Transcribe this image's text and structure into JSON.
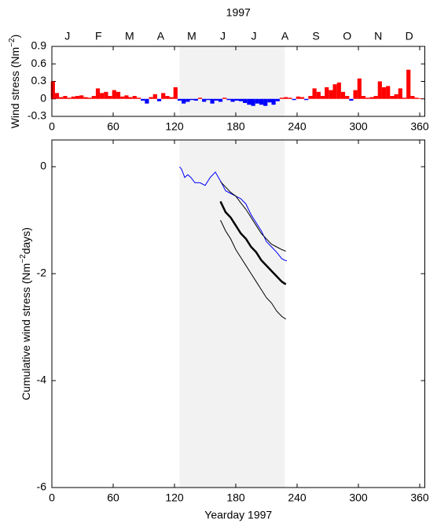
{
  "chart_data": [
    {
      "type": "bar",
      "title": "1997",
      "month_labels": [
        "J",
        "F",
        "M",
        "A",
        "M",
        "J",
        "J",
        "A",
        "S",
        "O",
        "N",
        "D"
      ],
      "ylabel": [
        "Wind stress (Nm",
        "−2",
        ")"
      ],
      "x": [
        1,
        5,
        9,
        13,
        17,
        21,
        25,
        29,
        33,
        37,
        41,
        45,
        49,
        53,
        57,
        61,
        65,
        69,
        73,
        77,
        81,
        85,
        89,
        93,
        97,
        101,
        105,
        109,
        113,
        117,
        121,
        125,
        129,
        133,
        137,
        141,
        145,
        149,
        153,
        157,
        161,
        165,
        169,
        173,
        177,
        181,
        185,
        189,
        193,
        197,
        201,
        205,
        209,
        213,
        217,
        221,
        225,
        229,
        233,
        237,
        241,
        245,
        249,
        253,
        257,
        261,
        265,
        269,
        273,
        277,
        281,
        285,
        289,
        293,
        297,
        301,
        305,
        309,
        313,
        317,
        321,
        325,
        329,
        333,
        337,
        341,
        345,
        349,
        353,
        357,
        361
      ],
      "values": [
        0.3,
        0.1,
        0.03,
        0.05,
        0.02,
        0.04,
        0.05,
        0.06,
        0.03,
        0.02,
        0.05,
        0.18,
        0.1,
        0.12,
        0.05,
        0.15,
        0.12,
        0.04,
        0.06,
        0.03,
        0.05,
        0.02,
        -0.03,
        -0.08,
        0.03,
        0.08,
        -0.04,
        0.1,
        0.05,
        0.03,
        0.2,
        -0.03,
        -0.08,
        -0.05,
        -0.02,
        -0.03,
        0.02,
        -0.05,
        -0.02,
        -0.08,
        -0.03,
        -0.05,
        0.02,
        -0.02,
        -0.05,
        -0.03,
        -0.04,
        -0.07,
        -0.1,
        -0.12,
        -0.08,
        -0.1,
        -0.12,
        -0.06,
        -0.1,
        -0.04,
        0.02,
        0.03,
        0.02,
        -0.02,
        0.04,
        0.03,
        -0.02,
        0.05,
        0.18,
        0.12,
        0.05,
        0.2,
        0.15,
        0.25,
        0.28,
        0.12,
        0.05,
        -0.03,
        0.15,
        0.35,
        0.05,
        0.02,
        0.03,
        0.05,
        0.3,
        0.2,
        0.22,
        0.05,
        0.08,
        0.18,
        0.02,
        0.5,
        0.05,
        0.02,
        0.01
      ],
      "bar_width": 4,
      "positive_color": "#ff0000",
      "negative_color": "#0000ff",
      "xlim": [
        0,
        365
      ],
      "xticks": [
        0,
        60,
        120,
        180,
        240,
        300,
        360
      ],
      "ylim": [
        -0.3,
        0.9
      ],
      "yticks": [
        0.9,
        0.6,
        0.3,
        0,
        -0.3
      ],
      "span": [
        125,
        228
      ],
      "span_color": "#f2f2f2"
    },
    {
      "type": "line",
      "xlabel": "Yearday 1997",
      "ylabel": [
        "Cumulative wind stress (Nm",
        "−2",
        "days)"
      ],
      "xlim": [
        0,
        365
      ],
      "xticks": [
        0,
        60,
        120,
        180,
        240,
        300,
        360
      ],
      "ylim": [
        -6,
        0.5
      ],
      "yticks": [
        0,
        -2,
        -4,
        -6
      ],
      "span": [
        125,
        228
      ],
      "span_color": "#f2f2f2",
      "series": [
        {
          "color": "#0000ff",
          "width": 1,
          "x": [
            125,
            127,
            130,
            133,
            136,
            140,
            145,
            150,
            155,
            160,
            163,
            166,
            170,
            175,
            180,
            185,
            190,
            195,
            200,
            205,
            210,
            215,
            220,
            225,
            228,
            230
          ],
          "values": [
            0,
            -0.05,
            -0.2,
            -0.15,
            -0.2,
            -0.3,
            -0.3,
            -0.35,
            -0.2,
            -0.1,
            -0.2,
            -0.3,
            -0.45,
            -0.5,
            -0.55,
            -0.6,
            -0.7,
            -0.9,
            -1.05,
            -1.2,
            -1.4,
            -1.5,
            -1.6,
            -1.72,
            -1.75,
            -1.76
          ]
        },
        {
          "color": "#000000",
          "width": 2.5,
          "x": [
            165,
            170,
            175,
            180,
            185,
            190,
            195,
            200,
            205,
            210,
            215,
            220,
            225,
            229
          ],
          "values": [
            -0.65,
            -0.85,
            -0.95,
            -1.1,
            -1.25,
            -1.35,
            -1.5,
            -1.6,
            -1.75,
            -1.85,
            -1.95,
            -2.05,
            -2.15,
            -2.2
          ]
        },
        {
          "color": "#000000",
          "width": 1,
          "x": [
            165,
            170,
            175,
            180,
            185,
            190,
            195,
            200,
            205,
            210,
            215,
            220,
            225,
            229
          ],
          "values": [
            -0.28,
            -0.38,
            -0.48,
            -0.55,
            -0.68,
            -0.8,
            -0.95,
            -1.1,
            -1.25,
            -1.35,
            -1.45,
            -1.5,
            -1.55,
            -1.58
          ]
        },
        {
          "color": "#000000",
          "width": 1,
          "x": [
            165,
            170,
            175,
            180,
            185,
            190,
            195,
            200,
            205,
            210,
            215,
            220,
            225,
            229
          ],
          "values": [
            -1.0,
            -1.2,
            -1.35,
            -1.55,
            -1.7,
            -1.85,
            -2.0,
            -2.15,
            -2.3,
            -2.45,
            -2.55,
            -2.7,
            -2.8,
            -2.85
          ]
        }
      ]
    }
  ]
}
